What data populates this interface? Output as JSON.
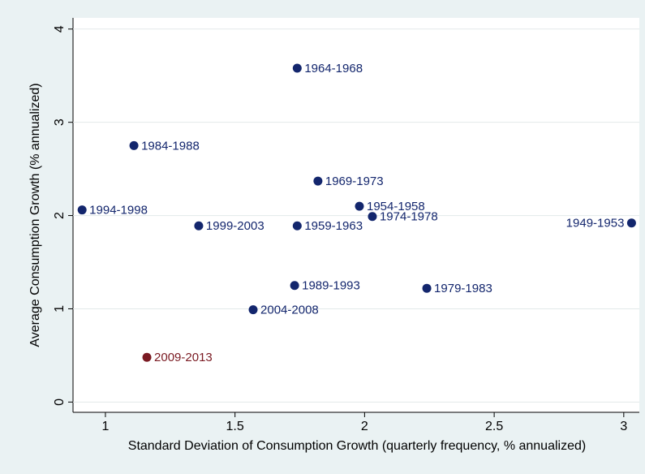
{
  "chart_data": {
    "type": "scatter",
    "x_label": "Standard Deviation of Consumption Growth (quarterly frequency, % annualized)",
    "y_label": "Average Consumption Growth (% annualized)",
    "labels": [
      "1964-1968",
      "1984-1988",
      "1969-1973",
      "1954-1958",
      "1974-1978",
      "1994-1998",
      "1999-2003",
      "1959-1963",
      "1949-1953",
      "1989-1993",
      "1979-1983",
      "2004-2008",
      "2009-2013"
    ],
    "x": [
      1.74,
      1.11,
      1.82,
      1.98,
      2.03,
      0.91,
      1.36,
      1.74,
      3.03,
      1.73,
      2.24,
      1.57,
      1.16
    ],
    "values": [
      3.58,
      2.75,
      2.37,
      2.1,
      1.99,
      2.06,
      1.89,
      1.89,
      1.92,
      1.25,
      1.22,
      0.99,
      0.48
    ],
    "colors": [
      "#13266d",
      "#13266d",
      "#13266d",
      "#13266d",
      "#13266d",
      "#13266d",
      "#13266d",
      "#13266d",
      "#13266d",
      "#13266d",
      "#13266d",
      "#13266d",
      "#7a1a22"
    ],
    "xlim": [
      0.875,
      3.06
    ],
    "ylim": [
      -0.11,
      4.12
    ],
    "xticks": [
      1,
      1.5,
      2,
      2.5,
      3
    ],
    "yticks": [
      0,
      1,
      2,
      3,
      4
    ],
    "grid": true
  }
}
